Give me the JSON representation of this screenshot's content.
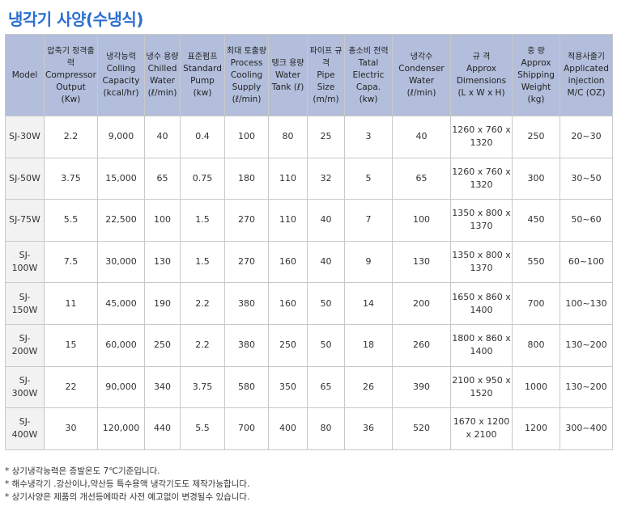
{
  "title": "냉각기 사양(수냉식)",
  "table": {
    "headers": [
      {
        "ko": "",
        "en": "Model"
      },
      {
        "ko": "압축기 정격출력",
        "en": "Compressor Output (Kw)"
      },
      {
        "ko": "냉각능력",
        "en": "Colling Capacity (kcal/hr)"
      },
      {
        "ko": "냉수 용량",
        "en": "Chilled Water (ℓ/min)"
      },
      {
        "ko": "표준펌프",
        "en": "Standard Pump (kw)"
      },
      {
        "ko": "최대 토출량",
        "en": "Process Cooling Supply (ℓ/min)"
      },
      {
        "ko": "탱크 용량",
        "en": "Water Tank (ℓ)"
      },
      {
        "ko": "파이프 규격",
        "en": "Pipe Size (m/m)"
      },
      {
        "ko": "총소비 전력",
        "en": "Tatal Electric Capa. (kw)"
      },
      {
        "ko": "냉각수",
        "en": "Condenser Water (ℓ/min)"
      },
      {
        "ko": "규 격",
        "en": "Approx Dimensions (L x W x H)"
      },
      {
        "ko": "중 량",
        "en": "Approx Shipping Weight (kg)"
      },
      {
        "ko": "적용사출기",
        "en": "Applicated injection M/C (OZ)"
      }
    ],
    "rows": [
      [
        "SJ-30W",
        "2.2",
        "9,000",
        "40",
        "0.4",
        "100",
        "80",
        "25",
        "3",
        "40",
        "1260 x 760 x 1320",
        "250",
        "20~30"
      ],
      [
        "SJ-50W",
        "3.75",
        "15,000",
        "65",
        "0.75",
        "180",
        "110",
        "32",
        "5",
        "65",
        "1260 x 760 x 1320",
        "300",
        "30~50"
      ],
      [
        "SJ-75W",
        "5.5",
        "22,500",
        "100",
        "1.5",
        "270",
        "110",
        "40",
        "7",
        "100",
        "1350 x 800 x 1370",
        "450",
        "50~60"
      ],
      [
        "SJ-100W",
        "7.5",
        "30,000",
        "130",
        "1.5",
        "270",
        "160",
        "40",
        "9",
        "130",
        "1350 x 800 x 1370",
        "550",
        "60~100"
      ],
      [
        "SJ-150W",
        "11",
        "45,000",
        "190",
        "2.2",
        "380",
        "160",
        "50",
        "14",
        "200",
        "1650 x 860 x 1400",
        "700",
        "100~130"
      ],
      [
        "SJ-200W",
        "15",
        "60,000",
        "250",
        "2.2",
        "380",
        "250",
        "50",
        "18",
        "260",
        "1800 x 860 x 1400",
        "800",
        "130~200"
      ],
      [
        "SJ-300W",
        "22",
        "90,000",
        "340",
        "3.75",
        "580",
        "350",
        "65",
        "26",
        "390",
        "2100 x 950 x 1520",
        "1000",
        "130~200"
      ],
      [
        "SJ-400W",
        "30",
        "120,000",
        "440",
        "5.5",
        "700",
        "400",
        "80",
        "36",
        "520",
        "1670 x 1200 x 2100",
        "1200",
        "300~400"
      ]
    ]
  },
  "notes": [
    "* 상기냉각능력은 증발온도 7℃기준입니다.",
    "* 해수냉각기 .강산이나,약산등 특수용액 냉각기도도 제작가능합니다.",
    "* 상기사양은 제품의 개선등에따라 사전 예고없이 변경될수 있습니다."
  ],
  "colors": {
    "title": "#2b6fd1",
    "header_bg": "#b2bedc",
    "model_bg": "#f2f2f2",
    "border": "#c9c9c9"
  }
}
